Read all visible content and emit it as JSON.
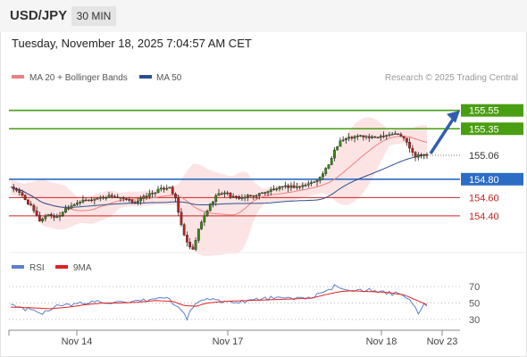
{
  "header": {
    "pair": "USD/JPY",
    "timeframe": "30 MIN"
  },
  "datetime": "Tuesday, November 18, 2025 7:04:57 AM CET",
  "legend": {
    "bb": {
      "label": "MA 20 + Bollinger Bands",
      "color": "#f08080"
    },
    "ma50": {
      "label": "MA 50",
      "color": "#2b4f8e"
    }
  },
  "credit": "Research © 2025 Trading Central",
  "rsi_legend": {
    "rsi": {
      "label": "RSI",
      "color": "#5b7fcf"
    },
    "ma": {
      "label": "9MA",
      "color": "#e02020"
    }
  },
  "chart_data": {
    "type": "line",
    "price_axis": {
      "ylim": [
        154.0,
        155.8
      ]
    },
    "levels": [
      {
        "value": 155.55,
        "label": "155.55",
        "kind": "resistance",
        "color": "#4a9e12"
      },
      {
        "value": 155.35,
        "label": "155.35",
        "kind": "resistance",
        "color": "#4a9e12"
      },
      {
        "value": 155.06,
        "label": "155.06",
        "kind": "last",
        "color": "#333333"
      },
      {
        "value": 154.8,
        "label": "154.80",
        "kind": "pivot",
        "color": "#2b6cc4"
      },
      {
        "value": 154.6,
        "label": "154.60",
        "kind": "support",
        "color": "#cc2222"
      },
      {
        "value": 154.4,
        "label": "154.40",
        "kind": "support",
        "color": "#cc2222"
      }
    ],
    "x_ticks": [
      "Nov 14",
      "Nov 17",
      "Nov 18",
      "Nov 23"
    ],
    "rsi_axis": {
      "ylim": [
        20,
        80
      ],
      "ticks": [
        "70",
        "50",
        "30"
      ]
    },
    "price_path": [
      [
        0,
        154.72
      ],
      [
        4,
        154.62
      ],
      [
        7,
        154.5
      ],
      [
        10,
        154.35
      ],
      [
        13,
        154.42
      ],
      [
        16,
        154.38
      ],
      [
        19,
        154.48
      ],
      [
        23,
        154.55
      ],
      [
        27,
        154.57
      ],
      [
        31,
        154.6
      ],
      [
        35,
        154.62
      ],
      [
        39,
        154.58
      ],
      [
        43,
        154.55
      ],
      [
        47,
        154.62
      ],
      [
        51,
        154.68
      ],
      [
        55,
        154.72
      ],
      [
        57,
        154.58
      ],
      [
        59,
        154.3
      ],
      [
        61,
        154.1
      ],
      [
        63,
        154.02
      ],
      [
        65,
        154.25
      ],
      [
        67,
        154.4
      ],
      [
        69,
        154.52
      ],
      [
        71,
        154.62
      ],
      [
        74,
        154.66
      ],
      [
        77,
        154.6
      ],
      [
        80,
        154.6
      ],
      [
        84,
        154.62
      ],
      [
        88,
        154.66
      ],
      [
        92,
        154.7
      ],
      [
        96,
        154.72
      ],
      [
        100,
        154.72
      ],
      [
        104,
        154.76
      ],
      [
        107,
        154.82
      ],
      [
        110,
        154.95
      ],
      [
        112,
        155.12
      ],
      [
        114,
        155.22
      ],
      [
        117,
        155.25
      ],
      [
        121,
        155.27
      ],
      [
        125,
        155.25
      ],
      [
        129,
        155.28
      ],
      [
        133,
        155.3
      ],
      [
        136,
        155.25
      ],
      [
        138,
        155.15
      ],
      [
        140,
        155.05
      ],
      [
        142,
        155.08
      ],
      [
        144,
        155.06
      ]
    ],
    "rsi_path": [
      [
        0,
        48
      ],
      [
        6,
        42
      ],
      [
        11,
        38
      ],
      [
        15,
        46
      ],
      [
        20,
        47
      ],
      [
        25,
        50
      ],
      [
        30,
        52
      ],
      [
        35,
        51
      ],
      [
        40,
        49
      ],
      [
        45,
        52
      ],
      [
        50,
        55
      ],
      [
        54,
        57
      ],
      [
        58,
        44
      ],
      [
        61,
        32
      ],
      [
        64,
        50
      ],
      [
        68,
        55
      ],
      [
        72,
        53
      ],
      [
        76,
        51
      ],
      [
        80,
        52
      ],
      [
        85,
        54
      ],
      [
        90,
        56
      ],
      [
        95,
        55
      ],
      [
        100,
        56
      ],
      [
        105,
        58
      ],
      [
        109,
        63
      ],
      [
        112,
        70
      ],
      [
        115,
        68
      ],
      [
        119,
        66
      ],
      [
        123,
        66
      ],
      [
        127,
        63
      ],
      [
        131,
        62
      ],
      [
        135,
        60
      ],
      [
        138,
        54
      ],
      [
        140,
        43
      ],
      [
        141,
        38
      ],
      [
        143,
        48
      ],
      [
        144,
        47
      ]
    ],
    "rsi_ma_path": [
      [
        0,
        45
      ],
      [
        8,
        44
      ],
      [
        14,
        43
      ],
      [
        20,
        45
      ],
      [
        26,
        48
      ],
      [
        32,
        50
      ],
      [
        38,
        50
      ],
      [
        44,
        51
      ],
      [
        50,
        53
      ],
      [
        56,
        52
      ],
      [
        60,
        47
      ],
      [
        64,
        46
      ],
      [
        68,
        50
      ],
      [
        74,
        52
      ],
      [
        82,
        53
      ],
      [
        90,
        54
      ],
      [
        98,
        55
      ],
      [
        104,
        56
      ],
      [
        110,
        61
      ],
      [
        114,
        64
      ],
      [
        118,
        65
      ],
      [
        124,
        64
      ],
      [
        130,
        63
      ],
      [
        136,
        60
      ],
      [
        140,
        54
      ],
      [
        144,
        48
      ]
    ],
    "x_range": [
      0,
      144
    ]
  }
}
